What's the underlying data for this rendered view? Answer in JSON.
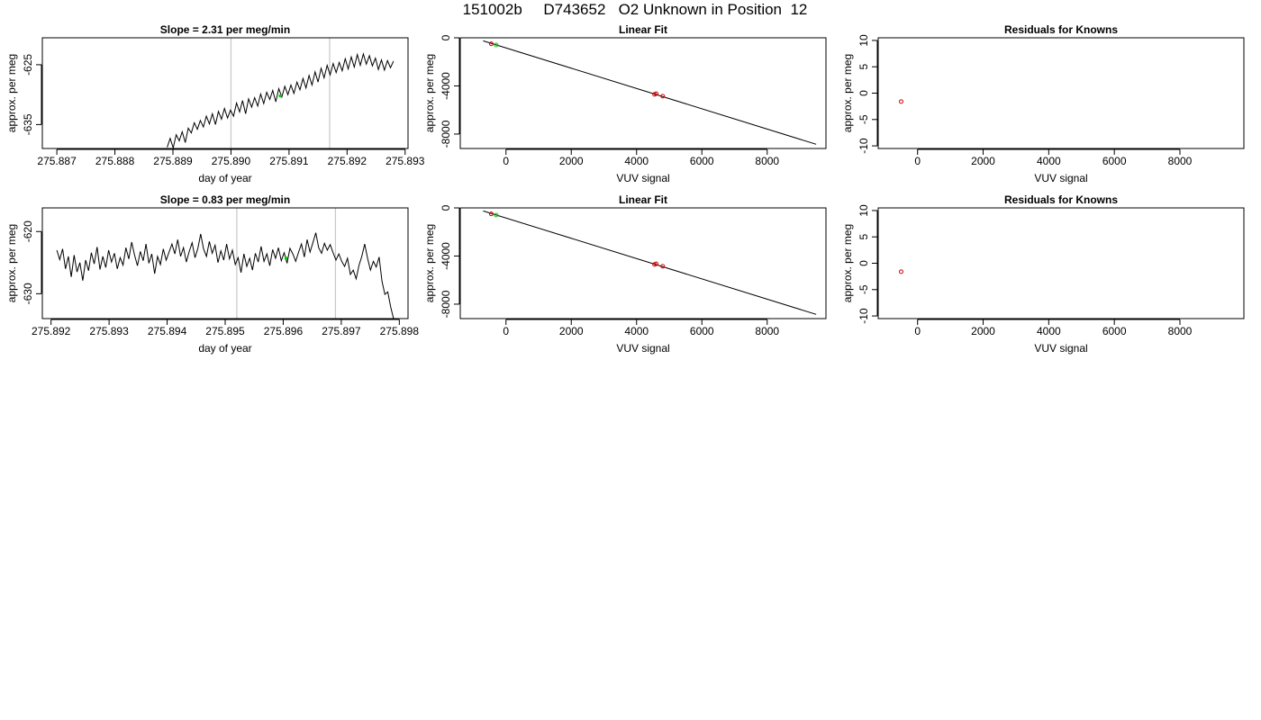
{
  "page": {
    "title": "151002b     D743652   O2 Unknown in Position  12"
  },
  "chart_data": [
    {
      "type": "line",
      "title": "Slope =  2.31  per meg/min",
      "xlabel": "day of year",
      "ylabel": "approx. per meg",
      "xlim": [
        275.88675,
        275.89305
      ],
      "ylim": [
        -639.0,
        -620.5
      ],
      "xticks": [
        "275.887",
        "275.888",
        "275.889",
        "275.890",
        "275.891",
        "275.892",
        "275.893"
      ],
      "yticks": [
        "-635",
        "-625"
      ],
      "vlines": [
        275.89,
        275.8917
      ],
      "series": [
        {
          "x_start": 275.8889,
          "x_end": 275.8928,
          "values": [
            -638.8,
            -637.3,
            -638.9,
            -636.7,
            -637.7,
            -636.2,
            -638.0,
            -635.6,
            -636.4,
            -634.7,
            -635.8,
            -634.3,
            -635.4,
            -633.6,
            -634.9,
            -633.2,
            -635.0,
            -632.8,
            -634.1,
            -632.3,
            -633.9,
            -632.6,
            -633.6,
            -631.4,
            -632.9,
            -631.0,
            -633.2,
            -630.7,
            -632.1,
            -630.5,
            -631.9,
            -629.9,
            -631.5,
            -629.6,
            -630.8,
            -629.3,
            -631.2,
            -629.0,
            -630.4,
            -628.6,
            -630.0,
            -628.4,
            -629.8,
            -627.9,
            -629.2,
            -627.3,
            -628.9,
            -626.8,
            -628.4,
            -626.2,
            -627.9,
            -625.6,
            -627.2,
            -625.1,
            -626.7,
            -624.8,
            -626.3,
            -624.6,
            -626.0,
            -624.0,
            -625.7,
            -623.7,
            -625.4,
            -623.3,
            -625.1,
            -623.2,
            -624.9,
            -623.5,
            -625.2,
            -623.9,
            -625.8,
            -624.2,
            -625.9,
            -624.3,
            -625.5,
            -624.4
          ]
        }
      ],
      "highlight_points": [
        {
          "x": 275.89085,
          "y": -630.2,
          "color": "#00cc00"
        }
      ]
    },
    {
      "type": "scatter",
      "title": "Linear Fit",
      "xlabel": "VUV signal",
      "ylabel": "approx. per meg",
      "xlim": [
        -1400,
        9800
      ],
      "ylim": [
        -9200,
        0
      ],
      "xticks": [
        "0",
        "2000",
        "4000",
        "6000",
        "8000"
      ],
      "yticks": [
        "0",
        "-4000",
        "-8000"
      ],
      "fit_line": {
        "x": [
          -700,
          9500
        ],
        "y": [
          -250,
          -8850
        ]
      },
      "points": [
        {
          "x": -450,
          "y": -500,
          "color": "#cc0000"
        },
        {
          "x": -300,
          "y": -600,
          "color": "#00cc00"
        },
        {
          "x": 4550,
          "y": -4700,
          "color": "#cc0000"
        },
        {
          "x": 4600,
          "y": -4650,
          "color": "#cc0000"
        },
        {
          "x": 4800,
          "y": -4850,
          "color": "#cc0000"
        }
      ]
    },
    {
      "type": "scatter",
      "title": "Residuals for Knowns",
      "xlabel": "VUV signal",
      "ylabel": "approx. per meg",
      "xlim": [
        -1200,
        9950
      ],
      "ylim": [
        -10.5,
        10.5
      ],
      "xticks": [
        "0",
        "2000",
        "4000",
        "6000",
        "8000"
      ],
      "yticks": [
        "-10",
        "-5",
        "0",
        "5",
        "10"
      ],
      "points": [
        {
          "x": -500,
          "y": -1.6,
          "color": "#cc0000"
        }
      ]
    },
    {
      "type": "line",
      "title": "Slope =  0.83  per meg/min",
      "xlabel": "day of year",
      "ylabel": "approx. per meg",
      "xlim": [
        275.89185,
        275.89815
      ],
      "ylim": [
        -634.0,
        -616.2
      ],
      "xticks": [
        "275.892",
        "275.893",
        "275.894",
        "275.895",
        "275.896",
        "275.897",
        "275.898"
      ],
      "yticks": [
        "-630",
        "-620"
      ],
      "vlines": [
        275.8952,
        275.8969
      ],
      "series": [
        {
          "x_start": 275.8921,
          "x_end": 275.8979,
          "values": [
            -623.0,
            -624.5,
            -622.8,
            -626.0,
            -624.0,
            -627.3,
            -623.8,
            -626.5,
            -625.0,
            -627.9,
            -624.6,
            -626.3,
            -623.4,
            -625.2,
            -622.5,
            -626.1,
            -624.0,
            -625.8,
            -623.0,
            -624.9,
            -623.5,
            -626.0,
            -624.2,
            -625.4,
            -622.6,
            -624.4,
            -621.7,
            -623.8,
            -625.5,
            -623.2,
            -624.7,
            -622.0,
            -625.1,
            -623.6,
            -626.8,
            -624.0,
            -625.3,
            -622.8,
            -624.6,
            -623.3,
            -622.0,
            -623.6,
            -621.3,
            -624.0,
            -622.6,
            -624.9,
            -623.2,
            -621.8,
            -624.2,
            -622.7,
            -620.4,
            -622.8,
            -624.0,
            -621.6,
            -623.5,
            -622.2,
            -625.0,
            -623.1,
            -624.6,
            -622.0,
            -624.4,
            -623.0,
            -625.3,
            -624.2,
            -626.6,
            -623.6,
            -625.6,
            -624.3,
            -626.2,
            -623.5,
            -624.9,
            -622.4,
            -624.8,
            -623.6,
            -625.5,
            -622.9,
            -624.3,
            -622.6,
            -624.7,
            -623.4,
            -625.1,
            -622.7,
            -623.6,
            -624.8,
            -623.3,
            -622.0,
            -624.1,
            -621.3,
            -623.3,
            -621.8,
            -620.2,
            -622.6,
            -623.5,
            -621.9,
            -623.0,
            -622.1,
            -623.4,
            -624.6,
            -623.6,
            -624.8,
            -625.6,
            -624.3,
            -626.9,
            -626.2,
            -627.6,
            -625.4,
            -624.0,
            -622.0,
            -624.3,
            -626.2,
            -624.8,
            -625.7,
            -624.1,
            -628.0,
            -630.1,
            -629.7,
            -632.1,
            -634.0
          ]
        }
      ],
      "highlight_points": [
        {
          "x": 275.89605,
          "y": -624.3,
          "color": "#00cc00"
        }
      ]
    },
    {
      "type": "scatter",
      "title": "Linear Fit",
      "xlabel": "VUV signal",
      "ylabel": "approx. per meg",
      "xlim": [
        -1400,
        9800
      ],
      "ylim": [
        -9200,
        0
      ],
      "xticks": [
        "0",
        "2000",
        "4000",
        "6000",
        "8000"
      ],
      "yticks": [
        "0",
        "-4000",
        "-8000"
      ],
      "fit_line": {
        "x": [
          -700,
          9500
        ],
        "y": [
          -250,
          -8850
        ]
      },
      "points": [
        {
          "x": -450,
          "y": -500,
          "color": "#cc0000"
        },
        {
          "x": -300,
          "y": -600,
          "color": "#00cc00"
        },
        {
          "x": 4550,
          "y": -4700,
          "color": "#cc0000"
        },
        {
          "x": 4600,
          "y": -4650,
          "color": "#cc0000"
        },
        {
          "x": 4800,
          "y": -4850,
          "color": "#cc0000"
        }
      ]
    },
    {
      "type": "scatter",
      "title": "Residuals for Knowns",
      "xlabel": "VUV signal",
      "ylabel": "approx. per meg",
      "xlim": [
        -1200,
        9950
      ],
      "ylim": [
        -10.5,
        10.5
      ],
      "xticks": [
        "0",
        "2000",
        "4000",
        "6000",
        "8000"
      ],
      "yticks": [
        "-10",
        "-5",
        "0",
        "5",
        "10"
      ],
      "points": [
        {
          "x": -500,
          "y": -1.6,
          "color": "#cc0000"
        }
      ]
    }
  ]
}
